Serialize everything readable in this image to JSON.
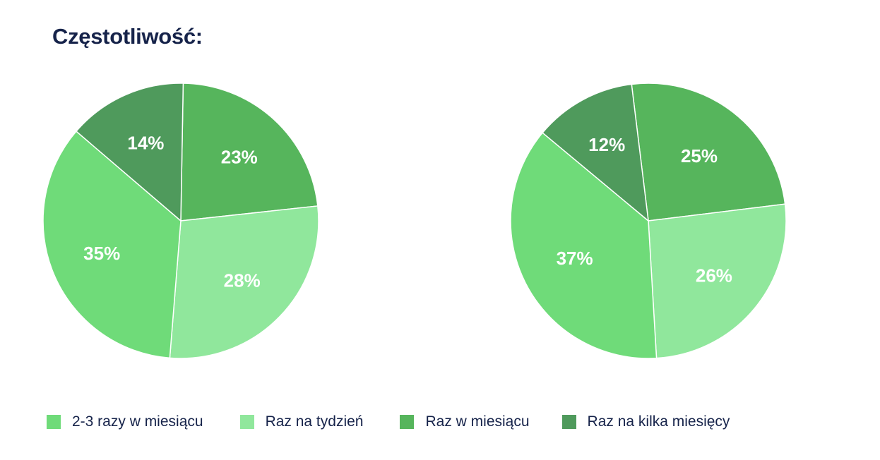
{
  "title": "Częstotliwość:",
  "colors": {
    "2-3 razy w miesiącu": "#6fdb79",
    "Raz na tydzień": "#90e79c",
    "Raz w miesiącu": "#56b55c",
    "Raz na kilka miesięcy": "#4f9a5c"
  },
  "chart_data": [
    {
      "type": "pie",
      "title": "",
      "categories": [
        "Raz w miesiącu",
        "Raz na tydzień",
        "2-3 razy w miesiącu",
        "Raz na kilka miesięcy"
      ],
      "values": [
        23,
        28,
        35,
        14
      ],
      "labels": [
        "23%",
        "28%",
        "35%",
        "14%"
      ]
    },
    {
      "type": "pie",
      "title": "",
      "categories": [
        "Raz w miesiącu",
        "Raz na tydzień",
        "2-3 razy w miesiącu",
        "Raz na kilka miesięcy"
      ],
      "values": [
        25,
        26,
        37,
        12
      ],
      "labels": [
        "25%",
        "26%",
        "37%",
        "12%"
      ]
    }
  ],
  "legend": [
    {
      "label": "2-3 razy w miesiącu",
      "color": "#6fdb79"
    },
    {
      "label": "Raz na tydzień",
      "color": "#90e79c"
    },
    {
      "label": "Raz w miesiącu",
      "color": "#56b55c"
    },
    {
      "label": "Raz na kilka miesięcy",
      "color": "#4f9a5c"
    }
  ]
}
